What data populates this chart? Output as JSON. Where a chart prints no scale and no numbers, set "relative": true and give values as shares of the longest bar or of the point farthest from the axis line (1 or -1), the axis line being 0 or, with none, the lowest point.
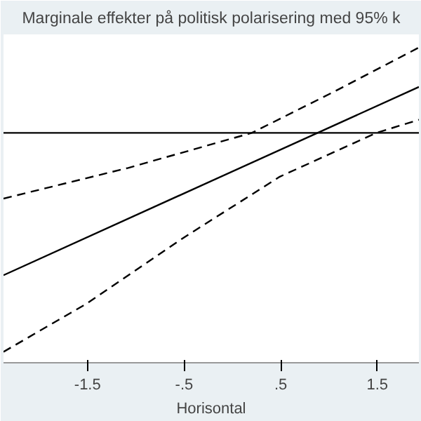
{
  "chart_data": {
    "type": "line",
    "title": "Marginale effekter på politisk polarisering med 95% k",
    "xlabel": "Horisontal",
    "relative": true,
    "xlim": [
      -2.37,
      1.93
    ],
    "xticks": [
      {
        "value": -1.5,
        "label": "-1.5"
      },
      {
        "value": -0.5,
        "label": "-.5"
      },
      {
        "value": 0.5,
        "label": ".5"
      },
      {
        "value": 1.5,
        "label": "1.5"
      }
    ],
    "ref_lines": [
      {
        "axis": "y",
        "value": 0,
        "color": "#000000"
      }
    ],
    "series": [
      {
        "color": "#000000",
        "line_style": "solid",
        "x": [
          -2.37,
          1.93
        ],
        "values": [
          -0.65,
          0.21
        ]
      },
      {
        "color": "#000000",
        "line_style": "dashed",
        "x": [
          -2.37,
          -1.08,
          0.2,
          1.06,
          1.93
        ],
        "values": [
          -0.3,
          -0.16,
          0,
          0.19,
          0.39
        ]
      },
      {
        "color": "#000000",
        "line_style": "dashed",
        "x": [
          -2.37,
          -1.51,
          -0.51,
          0.49,
          1.49,
          1.93
        ],
        "values": [
          -1,
          -0.78,
          -0.48,
          -0.2,
          0,
          0.06
        ]
      }
    ]
  }
}
